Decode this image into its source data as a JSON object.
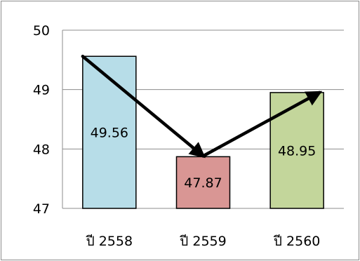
{
  "chart_data": {
    "type": "bar",
    "title": "",
    "xlabel": "",
    "ylabel": "",
    "categories": [
      "ปี 2558",
      "ปี 2559",
      "ปี 2560"
    ],
    "values": [
      49.56,
      47.87,
      48.95
    ],
    "data_labels": [
      "49.56",
      "47.87",
      "48.95"
    ],
    "bar_colors": [
      "#b7dde8",
      "#d99694",
      "#c3d69b"
    ],
    "ylim": [
      47,
      50
    ],
    "yticks": [
      "47",
      "48",
      "49",
      "50"
    ],
    "grid": true,
    "legend": "none",
    "overlay": "trend-arrows connecting bar tops"
  }
}
